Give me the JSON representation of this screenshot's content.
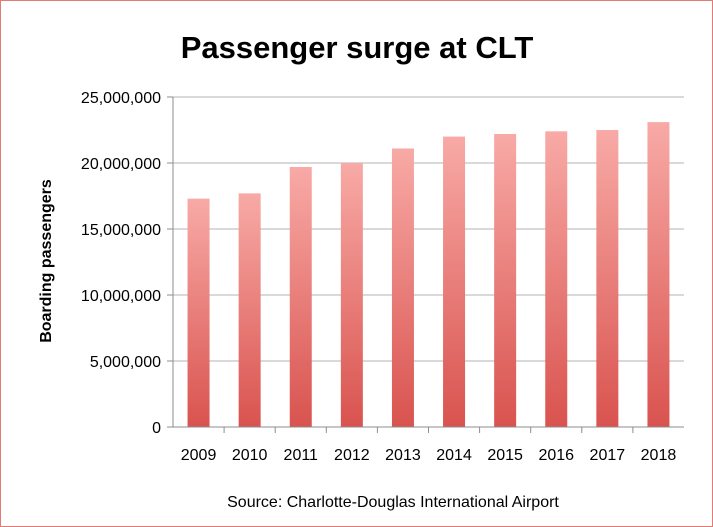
{
  "chart_data": {
    "type": "bar",
    "title": "Passenger surge at CLT",
    "xlabel": "",
    "ylabel": "Boarding passengers",
    "categories": [
      "2009",
      "2010",
      "2011",
      "2012",
      "2013",
      "2014",
      "2015",
      "2016",
      "2017",
      "2018"
    ],
    "values": [
      17300000,
      17700000,
      19700000,
      20000000,
      21100000,
      22000000,
      22200000,
      22400000,
      22500000,
      23100000
    ],
    "ylim": [
      0,
      25000000
    ],
    "yticks": [
      0,
      5000000,
      10000000,
      15000000,
      20000000,
      25000000
    ],
    "ytick_labels": [
      "0",
      "5,000,000",
      "10,000,000",
      "15,000,000",
      "20,000,000",
      "25,000,000"
    ],
    "grid": true,
    "legend": "none",
    "bar_color_top": "#f8aaa6",
    "bar_color_bottom": "#d9534f",
    "note": "Source: Charlotte-Douglas International Airport"
  }
}
